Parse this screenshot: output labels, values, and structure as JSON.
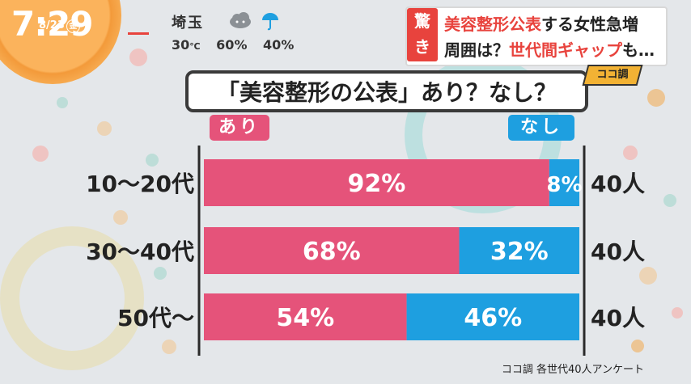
{
  "clock": {
    "time": "7:29",
    "date": "8/23",
    "weekday": "金"
  },
  "weather": {
    "prefecture": "埼玉",
    "temperature": "30",
    "temp_unit": "℃",
    "humidity": "60%",
    "rain_chance": "40%",
    "icons": [
      "cloud-icon",
      "umbrella-icon"
    ]
  },
  "headline": {
    "tag": "驚き",
    "line1_red": "美容整形公表",
    "line1_rest": "する女性急増",
    "line2_black": "周囲は？",
    "line2_red": "世代間ギャップ",
    "line2_rest": "も…",
    "corner": "ココ調"
  },
  "colors": {
    "ari": "#e5537a",
    "nashi": "#1e9fe0",
    "accent": "#e8433d"
  },
  "chart_data": {
    "type": "bar",
    "orientation": "horizontal",
    "stacked": true,
    "title": "「美容整形の公表」あり？なし？",
    "categories": [
      "10～20代",
      "30～40代",
      "50代～"
    ],
    "series": [
      {
        "name": "あり",
        "values": [
          92,
          68,
          54
        ],
        "labels": [
          "92%",
          "68%",
          "54%"
        ]
      },
      {
        "name": "なし",
        "values": [
          8,
          32,
          46
        ],
        "labels": [
          "8%",
          "32%",
          "46%"
        ]
      }
    ],
    "counts": [
      "40人",
      "40人",
      "40人"
    ],
    "xlim": [
      0,
      100
    ],
    "source": "ココ調 各世代40人アンケート"
  }
}
